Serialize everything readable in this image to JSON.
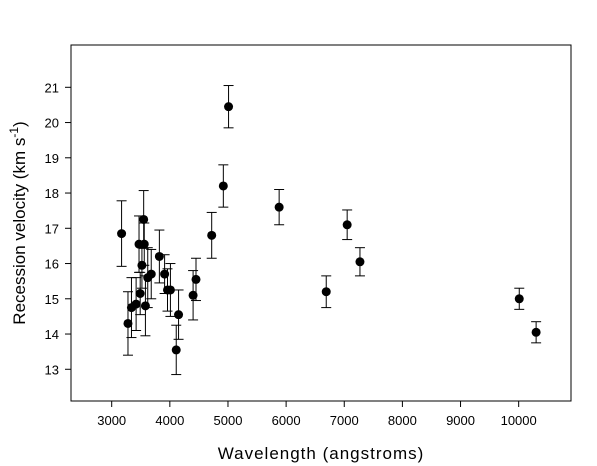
{
  "chart_data": {
    "type": "scatter",
    "title": "",
    "xlabel": "Wavelength (angstroms)",
    "ylabel_main": "Recession velocity (km s",
    "ylabel_exp": "-1",
    "ylabel_close": ")",
    "xlim": [
      2300,
      10900
    ],
    "ylim": [
      12.1,
      22.2
    ],
    "x_ticks": [
      3000,
      4000,
      5000,
      6000,
      7000,
      8000,
      9000,
      10000
    ],
    "x_tick_labels": [
      "3000",
      "4000",
      "5000",
      "6000",
      "7000",
      "8000",
      "9000",
      "10000"
    ],
    "y_ticks": [
      13,
      14,
      15,
      16,
      17,
      18,
      19,
      20,
      21
    ],
    "y_tick_labels": [
      "13",
      "14",
      "15",
      "16",
      "17",
      "18",
      "19",
      "20",
      "21"
    ],
    "grid": false,
    "legend": "none",
    "marker_color": "#000000",
    "points": [
      {
        "x": 3170,
        "y": 16.85,
        "err": 0.93
      },
      {
        "x": 3280,
        "y": 14.3,
        "err": 0.9
      },
      {
        "x": 3340,
        "y": 14.75,
        "err": 0.85
      },
      {
        "x": 3420,
        "y": 14.85,
        "err": 0.75
      },
      {
        "x": 3470,
        "y": 16.55,
        "err": 0.8
      },
      {
        "x": 3490,
        "y": 15.15,
        "err": 0.6
      },
      {
        "x": 3520,
        "y": 15.95,
        "err": 0.65
      },
      {
        "x": 3550,
        "y": 17.25,
        "err": 0.82
      },
      {
        "x": 3560,
        "y": 16.55,
        "err": 0.6
      },
      {
        "x": 3580,
        "y": 14.8,
        "err": 0.85
      },
      {
        "x": 3620,
        "y": 15.6,
        "err": 0.85
      },
      {
        "x": 3680,
        "y": 15.7,
        "err": 0.7
      },
      {
        "x": 3820,
        "y": 16.2,
        "err": 0.75
      },
      {
        "x": 3910,
        "y": 15.7,
        "err": 0.55
      },
      {
        "x": 3960,
        "y": 15.25,
        "err": 0.6
      },
      {
        "x": 4010,
        "y": 15.25,
        "err": 0.75
      },
      {
        "x": 4110,
        "y": 13.55,
        "err": 0.7
      },
      {
        "x": 4150,
        "y": 14.55,
        "err": 0.7
      },
      {
        "x": 4400,
        "y": 15.1,
        "err": 0.7
      },
      {
        "x": 4450,
        "y": 15.55,
        "err": 0.6
      },
      {
        "x": 4720,
        "y": 16.8,
        "err": 0.65
      },
      {
        "x": 4920,
        "y": 18.2,
        "err": 0.6
      },
      {
        "x": 5010,
        "y": 20.45,
        "err": 0.6
      },
      {
        "x": 5880,
        "y": 17.6,
        "err": 0.5
      },
      {
        "x": 6690,
        "y": 15.2,
        "err": 0.45
      },
      {
        "x": 7050,
        "y": 17.1,
        "err": 0.42
      },
      {
        "x": 7270,
        "y": 16.05,
        "err": 0.4
      },
      {
        "x": 10010,
        "y": 15.0,
        "err": 0.3
      },
      {
        "x": 10300,
        "y": 14.05,
        "err": 0.3
      }
    ]
  }
}
